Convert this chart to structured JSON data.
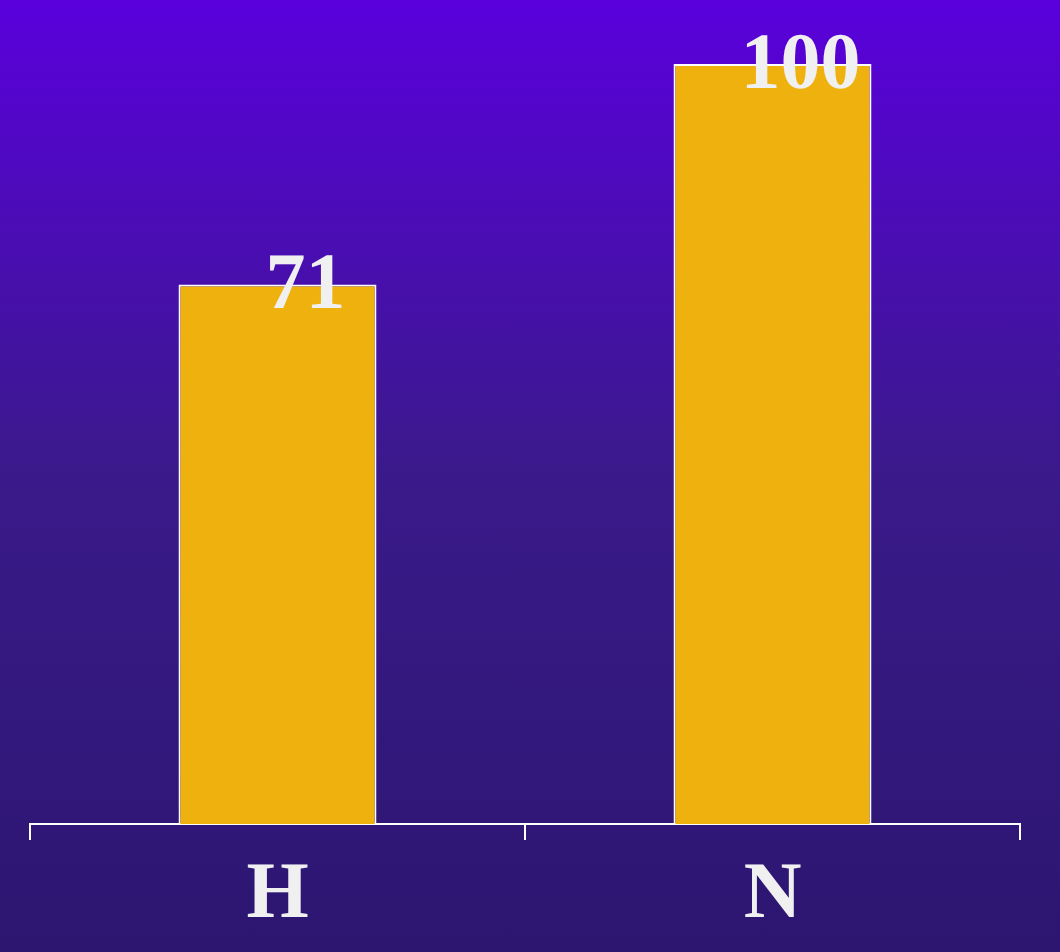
{
  "chart_data": {
    "type": "bar",
    "categories": [
      "H",
      "N"
    ],
    "values": [
      71,
      100
    ],
    "color": "#efb10e",
    "data_labels": true,
    "grid": false,
    "legend": false
  }
}
